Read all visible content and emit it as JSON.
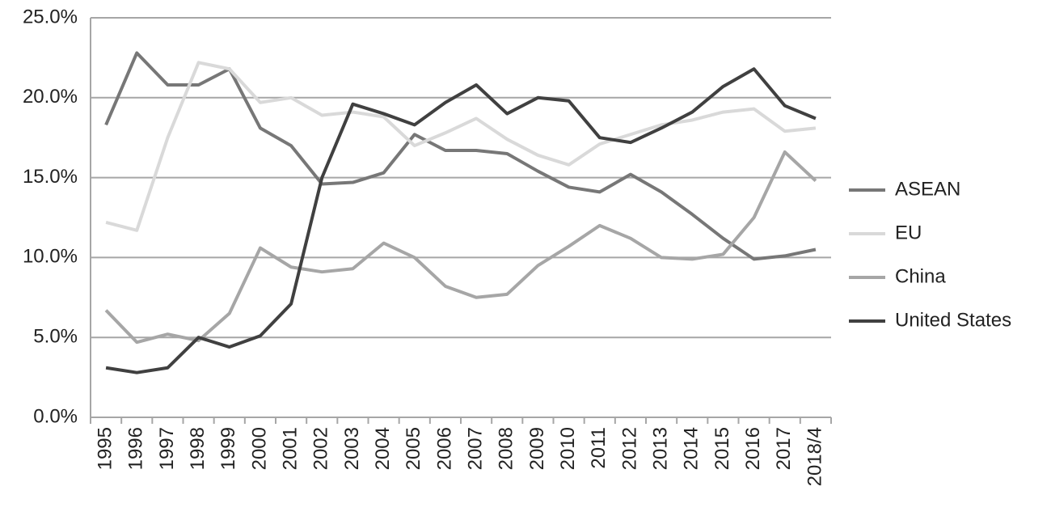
{
  "chart_data": {
    "type": "line",
    "categories": [
      "1995",
      "1996",
      "1997",
      "1998",
      "1999",
      "2000",
      "2001",
      "2002",
      "2003",
      "2004",
      "2005",
      "2006",
      "2007",
      "2008",
      "2009",
      "2010",
      "2011",
      "2012",
      "2013",
      "2014",
      "2015",
      "2016",
      "2017",
      "2018/4"
    ],
    "series": [
      {
        "name": "ASEAN",
        "color": "#777777",
        "values": [
          18.3,
          22.8,
          20.8,
          20.8,
          21.8,
          18.1,
          17.0,
          14.6,
          14.7,
          15.3,
          17.7,
          16.7,
          16.7,
          16.5,
          15.4,
          14.4,
          14.1,
          15.2,
          14.1,
          12.7,
          11.2,
          9.9,
          10.1,
          10.5
        ]
      },
      {
        "name": "EU",
        "color": "#d9d9d9",
        "values": [
          12.2,
          11.7,
          17.5,
          22.2,
          21.8,
          19.7,
          20.0,
          18.9,
          19.1,
          18.8,
          17.0,
          17.8,
          18.7,
          17.4,
          16.4,
          15.8,
          17.1,
          17.7,
          18.3,
          18.6,
          19.1,
          19.3,
          17.9,
          18.1
        ]
      },
      {
        "name": "China",
        "color": "#a6a6a6",
        "values": [
          6.7,
          4.7,
          5.2,
          4.8,
          6.5,
          10.6,
          9.4,
          9.1,
          9.3,
          10.9,
          10.0,
          8.2,
          7.5,
          7.7,
          9.5,
          10.7,
          12.0,
          11.2,
          10.0,
          9.9,
          10.2,
          12.5,
          16.6,
          14.8
        ]
      },
      {
        "name": "United States",
        "color": "#404040",
        "values": [
          3.1,
          2.8,
          3.1,
          5.0,
          4.4,
          5.1,
          7.1,
          15.0,
          19.6,
          19.0,
          18.3,
          19.7,
          20.8,
          19.0,
          20.0,
          19.8,
          17.5,
          17.2,
          18.1,
          19.1,
          20.7,
          21.8,
          19.5,
          18.7
        ]
      }
    ],
    "ylim": [
      0,
      25
    ],
    "yticks": [
      {
        "value": 0,
        "label": "0.0%"
      },
      {
        "value": 5,
        "label": "5.0%"
      },
      {
        "value": 10,
        "label": "10.0%"
      },
      {
        "value": 15,
        "label": "15.0%"
      },
      {
        "value": 20,
        "label": "20.0%"
      },
      {
        "value": 25,
        "label": "25.0%"
      }
    ],
    "grid": true,
    "legend": "right"
  }
}
